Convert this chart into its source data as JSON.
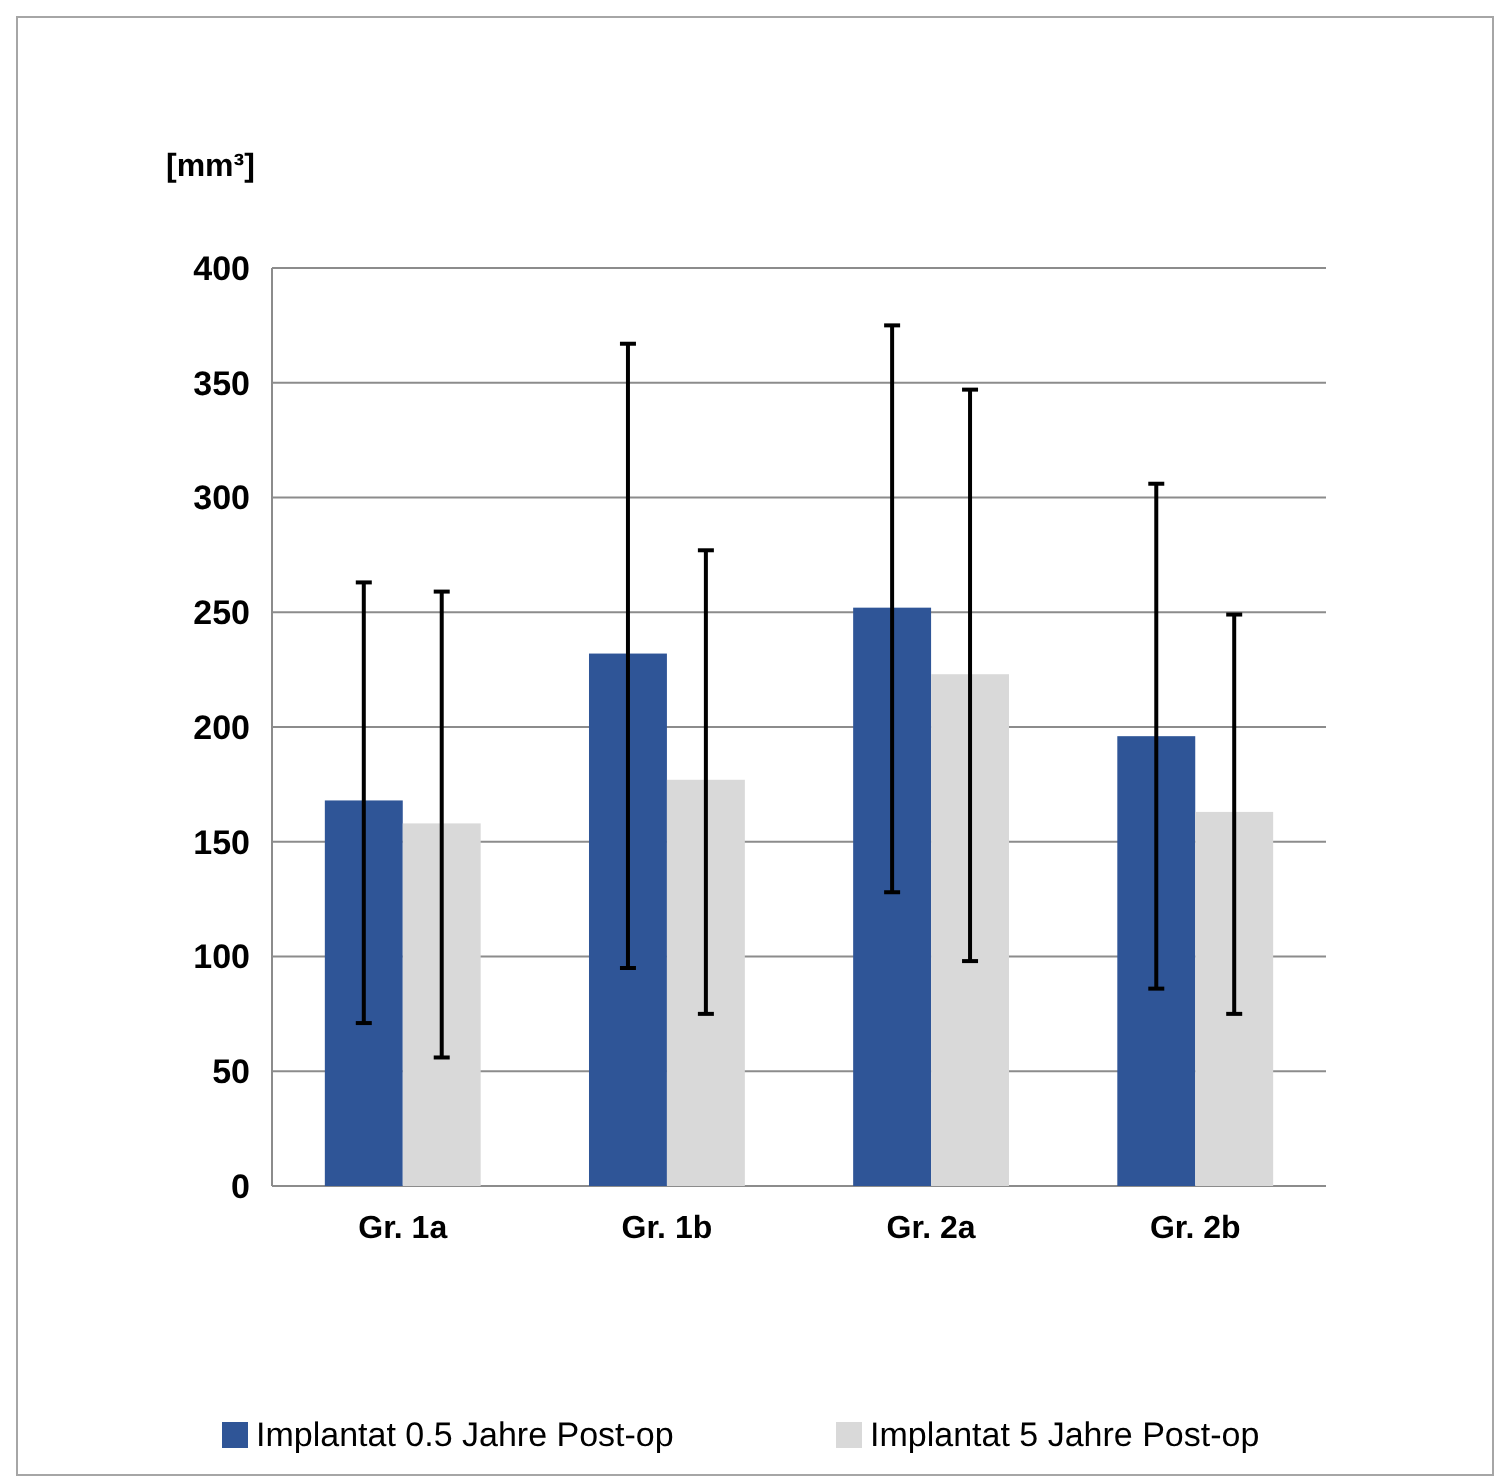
{
  "chart_data": {
    "type": "bar",
    "ylabel": "[mm³]",
    "categories": [
      "Gr. 1a",
      "Gr. 1b",
      "Gr. 2a",
      "Gr. 2b"
    ],
    "series": [
      {
        "name": "Implantat 0.5 Jahre  Post-op",
        "color": "#2f5597",
        "values": [
          168,
          232,
          252,
          196
        ],
        "errors": [
          [
            71,
            263
          ],
          [
            95,
            367
          ],
          [
            128,
            375
          ],
          [
            86,
            306
          ]
        ]
      },
      {
        "name": "Implantat 5 Jahre  Post-op",
        "color": "#d9d9d9",
        "values": [
          158,
          177,
          223,
          163
        ],
        "errors": [
          [
            56,
            259
          ],
          [
            75,
            277
          ],
          [
            98,
            347
          ],
          [
            75,
            249
          ]
        ]
      }
    ],
    "ylim": [
      0,
      400
    ],
    "yticks": [
      0,
      50,
      100,
      150,
      200,
      250,
      300,
      350,
      400
    ],
    "grid": "y",
    "legend": "bottom"
  }
}
